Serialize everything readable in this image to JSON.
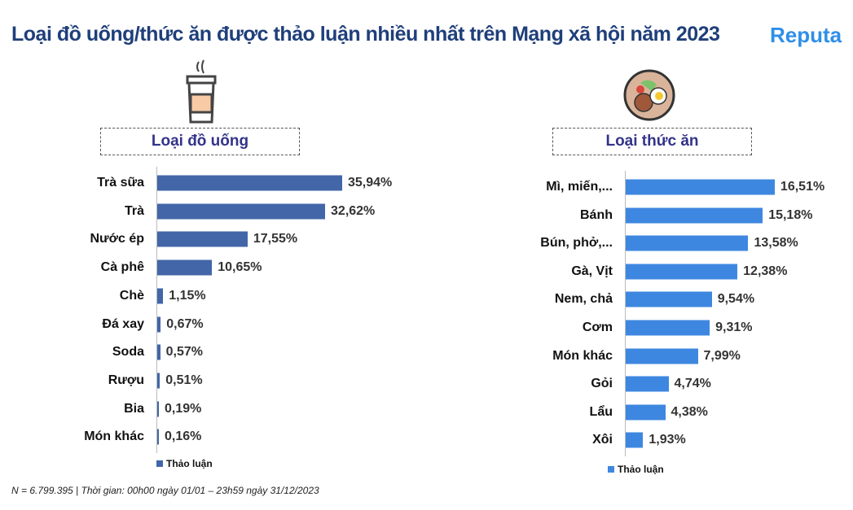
{
  "title": "Loại đồ uống/thức ăn được thảo luận nhiều nhất trên Mạng xã hội năm 2023",
  "logo": "Reputa",
  "footnote": "N = 6.799.395 | Thời gian: 00h00 ngày 01/01 – 23h59 ngày 31/12/2023",
  "chart_data": [
    {
      "type": "bar",
      "orientation": "horizontal",
      "title": "Loại đồ uống",
      "legend": "Thảo luận",
      "color": "#4266a8",
      "categories": [
        "Trà sữa",
        "Trà",
        "Nước ép",
        "Cà phê",
        "Chè",
        "Đá xay",
        "Soda",
        "Rượu",
        "Bia",
        "Món khác"
      ],
      "values": [
        35.94,
        32.62,
        17.55,
        10.65,
        1.15,
        0.67,
        0.57,
        0.51,
        0.19,
        0.16
      ],
      "labels": [
        "35,94%",
        "32,62%",
        "17,55%",
        "10,65%",
        "1,15%",
        "0,67%",
        "0,57%",
        "0,51%",
        "0,19%",
        "0,16%"
      ]
    },
    {
      "type": "bar",
      "orientation": "horizontal",
      "title": "Loại thức ăn",
      "legend": "Thảo luận",
      "color": "#3e87e0",
      "categories": [
        "Mì, miến,...",
        "Bánh",
        "Bún, phở,...",
        "Gà, Vịt",
        "Nem, chả",
        "Cơm",
        "Món khác",
        "Gỏi",
        "Lẩu",
        "Xôi"
      ],
      "values": [
        16.51,
        15.18,
        13.58,
        12.38,
        9.54,
        9.31,
        7.99,
        4.74,
        4.38,
        1.93
      ],
      "labels": [
        "16,51%",
        "15,18%",
        "13,58%",
        "12,38%",
        "9,54%",
        "9,31%",
        "7,99%",
        "4,74%",
        "4,38%",
        "1,93%"
      ]
    }
  ]
}
